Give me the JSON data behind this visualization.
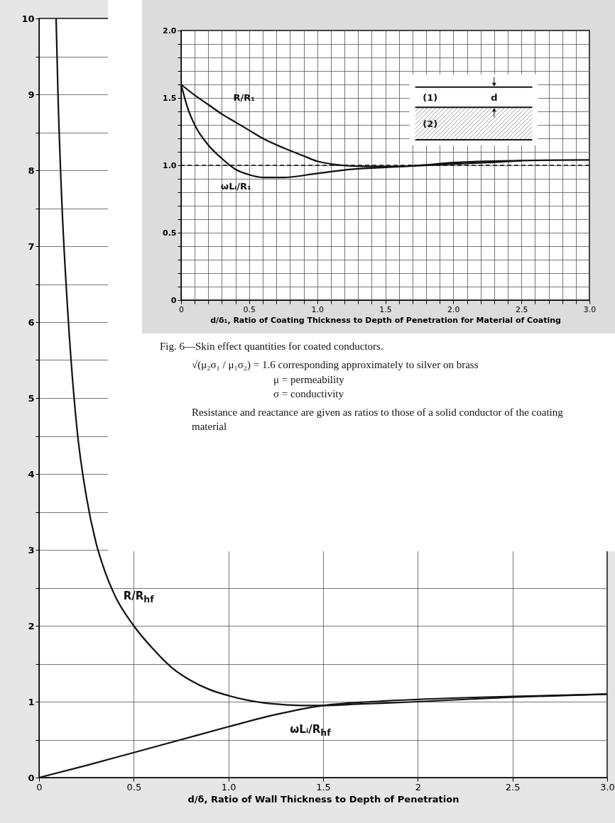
{
  "chart_data": [
    {
      "type": "line",
      "title": "Fig. 6—Skin effect quantities for coated conductors.",
      "xlabel": "d/δ₁, Ratio of Coating Thickness to Depth of Penetration for Material of Coating",
      "xlim": [
        0,
        3
      ],
      "ylim": [
        0,
        2
      ],
      "xticks": [
        0,
        {
          "value": 0.1,
          "label": null
        },
        {
          "value": 0.2,
          "label": null
        },
        {
          "value": 0.3,
          "label": null
        },
        {
          "value": 0.4,
          "label": null
        },
        0.5,
        {
          "value": 0.6,
          "label": null
        },
        {
          "value": 0.7,
          "label": null
        },
        {
          "value": 0.8,
          "label": null
        },
        {
          "value": 0.9,
          "label": null
        },
        {
          "value": 1,
          "label": "1.0"
        },
        {
          "value": 1.1,
          "label": null
        },
        {
          "value": 1.2,
          "label": null
        },
        {
          "value": 1.3,
          "label": null
        },
        {
          "value": 1.4,
          "label": null
        },
        1.5,
        {
          "value": 1.6,
          "label": null
        },
        {
          "value": 1.7,
          "label": null
        },
        {
          "value": 1.8,
          "label": null
        },
        {
          "value": 1.9,
          "label": null
        },
        {
          "value": 2,
          "label": "2.0"
        },
        {
          "value": 2.1,
          "label": null
        },
        {
          "value": 2.2,
          "label": null
        },
        {
          "value": 2.3,
          "label": null
        },
        {
          "value": 2.4,
          "label": null
        },
        2.5,
        {
          "value": 2.6,
          "label": null
        },
        {
          "value": 2.7,
          "label": null
        },
        {
          "value": 2.8,
          "label": null
        },
        {
          "value": 2.9,
          "label": null
        },
        {
          "value": 3,
          "label": "3.0"
        }
      ],
      "yticks": [
        0,
        {
          "value": 0.1,
          "label": null
        },
        {
          "value": 0.2,
          "label": null
        },
        {
          "value": 0.3,
          "label": null
        },
        {
          "value": 0.4,
          "label": null
        },
        0.5,
        {
          "value": 0.6,
          "label": null
        },
        {
          "value": 0.7,
          "label": null
        },
        {
          "value": 0.8,
          "label": null
        },
        {
          "value": 0.9,
          "label": null
        },
        {
          "value": 1,
          "label": "1.0"
        },
        {
          "value": 1.1,
          "label": null
        },
        {
          "value": 1.2,
          "label": null
        },
        {
          "value": 1.3,
          "label": null
        },
        {
          "value": 1.4,
          "label": null
        },
        1.5,
        {
          "value": 1.6,
          "label": null
        },
        {
          "value": 1.7,
          "label": null
        },
        {
          "value": 1.8,
          "label": null
        },
        {
          "value": 1.9,
          "label": null
        },
        {
          "value": 2,
          "label": "2.0"
        }
      ],
      "grid": true,
      "ref_lines": [
        {
          "axis": "y",
          "value": 1,
          "line_style": "dashed"
        }
      ],
      "series": [
        {
          "name": "R/R₁",
          "color": "#111111",
          "x": [
            0,
            0.1,
            0.2,
            0.3,
            0.4,
            0.5,
            0.6,
            0.75,
            0.9,
            1.0,
            1.1,
            1.25,
            1.5,
            1.75,
            2.0,
            2.5,
            3.0
          ],
          "values": [
            1.6,
            1.52,
            1.45,
            1.38,
            1.32,
            1.26,
            1.2,
            1.13,
            1.07,
            1.03,
            1.01,
            0.995,
            0.99,
            1.0,
            1.02,
            1.035,
            1.04
          ]
        },
        {
          "name": "ωLᵢ/R₁",
          "color": "#111111",
          "x": [
            0,
            0.05,
            0.1,
            0.2,
            0.3,
            0.4,
            0.5,
            0.6,
            0.75,
            1.0,
            1.25,
            1.5,
            2.0,
            2.25,
            2.5
          ],
          "values": [
            1.6,
            1.42,
            1.3,
            1.15,
            1.05,
            0.97,
            0.93,
            0.91,
            0.91,
            0.94,
            0.97,
            0.985,
            1.01,
            1.02,
            1.035
          ]
        }
      ],
      "annotations": [
        "√(μ₂σ₁ / μ₁σ₂) = 1.6 corresponding approximately to silver on brass",
        "μ = permeability",
        "σ = conductivity",
        "Resistance and reactance are given as ratios to those of a solid conductor of the coating material",
        "(1)",
        "d",
        "(2)"
      ]
    },
    {
      "type": "line",
      "xlabel": "d/δ, Ratio of Wall Thickness to Depth of Penetration",
      "xlim": [
        0,
        3
      ],
      "ylim": [
        0,
        10
      ],
      "xticks": [
        0,
        0.5,
        {
          "value": 1,
          "label": "1.0"
        },
        1.5,
        2,
        2.5,
        {
          "value": 3,
          "label": "3.0"
        }
      ],
      "yticks": [
        0,
        {
          "value": 0.5,
          "label": null
        },
        1,
        {
          "value": 1.5,
          "label": null
        },
        2,
        {
          "value": 2.5,
          "label": null
        },
        3,
        {
          "value": 3.5,
          "label": null
        },
        4,
        {
          "value": 4.5,
          "label": null
        },
        5,
        {
          "value": 5.5,
          "label": null
        },
        6,
        {
          "value": 6.5,
          "label": null
        },
        7,
        {
          "value": 7.5,
          "label": null
        },
        8,
        {
          "value": 8.5,
          "label": null
        },
        9,
        {
          "value": 9.5,
          "label": null
        },
        10
      ],
      "grid": true,
      "series": [
        {
          "name": "R/R$_{hf}$",
          "color": "#111111",
          "x": [
            0.09,
            0.1,
            0.12,
            0.15,
            0.2,
            0.25,
            0.3,
            0.35,
            0.4,
            0.5,
            0.6,
            0.7,
            0.8,
            0.9,
            1.0,
            1.1,
            1.2,
            1.3,
            1.4,
            1.5,
            1.7,
            2.0,
            2.5,
            3.0
          ],
          "values": [
            10,
            9.0,
            7.6,
            6.2,
            4.6,
            3.7,
            3.1,
            2.7,
            2.4,
            2.0,
            1.7,
            1.45,
            1.28,
            1.16,
            1.08,
            1.02,
            0.98,
            0.96,
            0.95,
            0.95,
            0.97,
            1.0,
            1.06,
            1.1
          ]
        },
        {
          "name": "ωLᵢ/R$_{hf}$",
          "color": "#111111",
          "x": [
            0,
            0.25,
            0.5,
            0.75,
            1.0,
            1.25,
            1.5,
            1.75,
            2.0,
            2.5,
            3.0
          ],
          "values": [
            0,
            0.16,
            0.33,
            0.5,
            0.67,
            0.83,
            0.95,
            1.0,
            1.03,
            1.07,
            1.1
          ]
        }
      ]
    }
  ]
}
